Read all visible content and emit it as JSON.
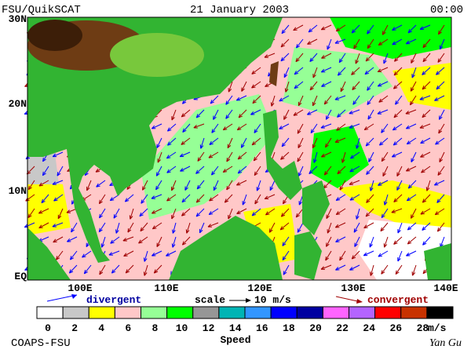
{
  "header": {
    "left": "FSU/QuikSCAT",
    "center": "21 January 2003",
    "right": "00:00"
  },
  "axes": {
    "lat_labels": [
      "30N",
      "20N",
      "10N",
      "EQ"
    ],
    "lon_labels": [
      "100E",
      "110E",
      "120E",
      "130E",
      "140E"
    ]
  },
  "legend": {
    "divergent": "divergent",
    "scale": "scale",
    "scale_value": "10 m/s",
    "convergent": "convergent"
  },
  "colorbar": {
    "ticks": [
      0,
      2,
      4,
      6,
      8,
      10,
      12,
      14,
      16,
      18,
      20,
      22,
      24,
      26,
      28
    ],
    "unit": "m/s",
    "title": "Speed",
    "colors": [
      "#ffffff",
      "#c8c8c8",
      "#ffff00",
      "#ffc8c8",
      "#96ff96",
      "#00ff00",
      "#969696",
      "#00b4b4",
      "#3296ff",
      "#0000ff",
      "#0000a0",
      "#ff64ff",
      "#b464ff",
      "#ff0000",
      "#c83200",
      "#000000"
    ]
  },
  "footer": {
    "left": "COAPS-FSU",
    "right": "Yan Gu"
  }
}
